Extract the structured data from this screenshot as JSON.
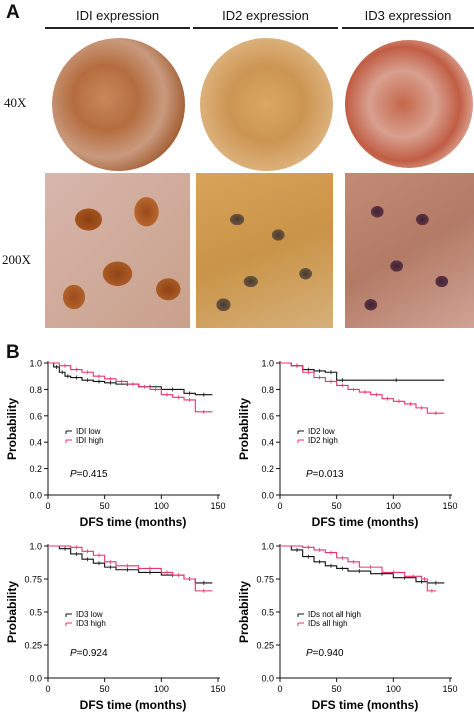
{
  "panel_a": {
    "letter": "A",
    "columns": [
      "IDI expression",
      "ID2 expression",
      "ID3 expression"
    ],
    "rows": [
      "40X",
      "200X"
    ]
  },
  "panel_b": {
    "letter": "B"
  },
  "colors": {
    "low": "#111111",
    "high": "#e8336b",
    "ihc_brown": "#b06a3a",
    "stroma": "#d9c7c0"
  },
  "chart_data": [
    {
      "type": "line",
      "xlabel": "DFS time (months)",
      "ylabel": "Probability",
      "xlim": [
        0,
        150
      ],
      "ylim": [
        0.0,
        1.0
      ],
      "xticks": [
        "0",
        "50",
        "100",
        "150"
      ],
      "yticks": [
        "0.0",
        "0.2",
        "0.4",
        "0.6",
        "0.8",
        "1.0"
      ],
      "annotation": "P=0.415",
      "legend_position": "middle-left",
      "series": [
        {
          "name": "IDI low",
          "color": "#111111",
          "x": [
            0,
            5,
            10,
            15,
            20,
            30,
            40,
            50,
            60,
            80,
            100,
            120,
            130,
            145
          ],
          "y": [
            1.0,
            0.97,
            0.93,
            0.9,
            0.89,
            0.87,
            0.86,
            0.85,
            0.84,
            0.82,
            0.8,
            0.77,
            0.76,
            0.76
          ]
        },
        {
          "name": "IDI high",
          "color": "#e8336b",
          "x": [
            0,
            10,
            20,
            30,
            40,
            50,
            60,
            70,
            80,
            90,
            100,
            110,
            120,
            130,
            145
          ],
          "y": [
            1.0,
            0.98,
            0.95,
            0.93,
            0.9,
            0.88,
            0.86,
            0.84,
            0.82,
            0.8,
            0.76,
            0.74,
            0.72,
            0.63,
            0.63
          ]
        }
      ]
    },
    {
      "type": "line",
      "xlabel": "DFS time (months)",
      "ylabel": "Probability",
      "xlim": [
        0,
        150
      ],
      "ylim": [
        0.0,
        1.0
      ],
      "xticks": [
        "0",
        "50",
        "100",
        "150"
      ],
      "yticks": [
        "0.0",
        "0.2",
        "0.4",
        "0.6",
        "0.8",
        "1.0"
      ],
      "annotation": "P=0.013",
      "legend_position": "middle-left",
      "series": [
        {
          "name": "ID2 low",
          "color": "#111111",
          "x": [
            0,
            10,
            20,
            30,
            40,
            50,
            60,
            145
          ],
          "y": [
            1.0,
            0.98,
            0.95,
            0.94,
            0.93,
            0.87,
            0.87,
            0.87
          ]
        },
        {
          "name": "ID2 high",
          "color": "#e8336b",
          "x": [
            0,
            10,
            20,
            30,
            40,
            50,
            60,
            70,
            80,
            90,
            100,
            110,
            120,
            130,
            145
          ],
          "y": [
            1.0,
            0.98,
            0.93,
            0.89,
            0.86,
            0.83,
            0.8,
            0.78,
            0.76,
            0.73,
            0.71,
            0.69,
            0.66,
            0.62,
            0.62
          ]
        }
      ]
    },
    {
      "type": "line",
      "xlabel": "DFS time (months)",
      "ylabel": "Probability",
      "xlim": [
        0,
        150
      ],
      "ylim": [
        0.0,
        1.0
      ],
      "xticks": [
        "0",
        "50",
        "100",
        "150"
      ],
      "yticks": [
        "0.0",
        "0.25",
        "0.5",
        "0.75",
        "1.0"
      ],
      "annotation": "P=0.924",
      "legend_position": "middle-left",
      "series": [
        {
          "name": "ID3 low",
          "color": "#111111",
          "x": [
            0,
            10,
            20,
            30,
            40,
            50,
            60,
            80,
            100,
            120,
            130,
            145
          ],
          "y": [
            1.0,
            0.98,
            0.94,
            0.9,
            0.87,
            0.84,
            0.82,
            0.8,
            0.78,
            0.75,
            0.72,
            0.72
          ]
        },
        {
          "name": "ID3 high",
          "color": "#e8336b",
          "x": [
            0,
            20,
            30,
            40,
            50,
            60,
            80,
            100,
            110,
            120,
            130,
            145
          ],
          "y": [
            1.0,
            0.99,
            0.96,
            0.93,
            0.88,
            0.85,
            0.83,
            0.8,
            0.78,
            0.75,
            0.66,
            0.66
          ]
        }
      ]
    },
    {
      "type": "line",
      "xlabel": "DFS time (months)",
      "ylabel": "Probability",
      "xlim": [
        0,
        150
      ],
      "ylim": [
        0.0,
        1.0
      ],
      "xticks": [
        "0",
        "50",
        "100",
        "150"
      ],
      "yticks": [
        "0.0",
        "0.25",
        "0.5",
        "0.75",
        "1.0"
      ],
      "annotation": "P=0.940",
      "legend_position": "middle-left",
      "series": [
        {
          "name": "IDs not all high",
          "color": "#111111",
          "x": [
            0,
            10,
            20,
            30,
            40,
            50,
            60,
            80,
            100,
            120,
            130,
            145
          ],
          "y": [
            1.0,
            0.97,
            0.92,
            0.88,
            0.85,
            0.83,
            0.81,
            0.79,
            0.76,
            0.73,
            0.72,
            0.72
          ]
        },
        {
          "name": "IDs all high",
          "color": "#e8336b",
          "x": [
            0,
            20,
            30,
            40,
            50,
            60,
            70,
            90,
            110,
            125,
            130,
            138
          ],
          "y": [
            1.0,
            0.99,
            0.97,
            0.95,
            0.91,
            0.88,
            0.84,
            0.8,
            0.77,
            0.75,
            0.66,
            0.66
          ]
        }
      ]
    }
  ]
}
